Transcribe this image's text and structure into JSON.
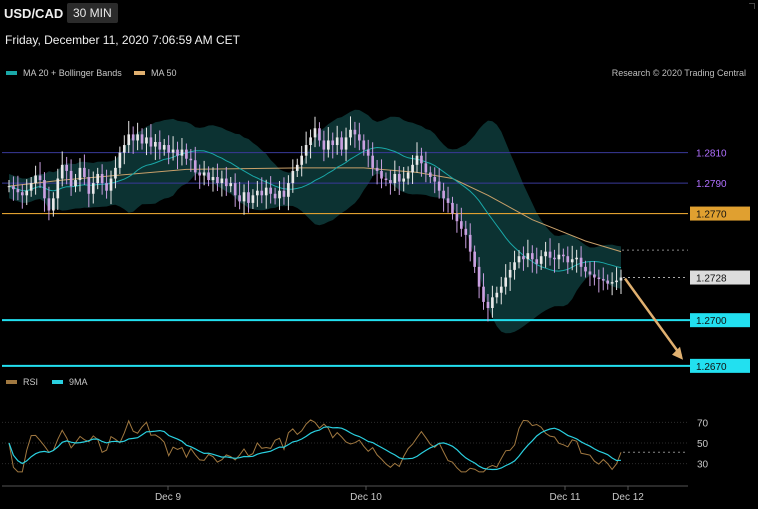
{
  "header": {
    "symbol": "USD/CAD",
    "timeframe": "30 MIN",
    "datetime": "Friday, December 11, 2020 7:06:59 AM CET",
    "credit": "Research © 2020 Trading Central"
  },
  "legend": [
    {
      "label": "MA 20 + Bollinger Bands",
      "color": "#1aa8a8"
    },
    {
      "label": "MA 50",
      "color": "#e0b070"
    }
  ],
  "colors": {
    "up_candle": "#e8e8e8",
    "down_candle": "#c9a0e0",
    "bollinger_band": "#0d3535",
    "ma20": "#1aa8a8",
    "ma50": "#c8a06a",
    "resistance_line": "#3a3a9a",
    "support_line": "#22e0f0",
    "pivot_line": "#e0a030",
    "arrow": "#e0b070",
    "rsi": "#a07840",
    "rsi_ma": "#2ad0e0"
  },
  "chart_data": [
    {
      "type": "candlestick",
      "title": "USD/CAD 30 MIN",
      "x_labels": [
        "Dec 9",
        "Dec 10",
        "Dec 11",
        "Dec 12"
      ],
      "ylim": [
        1.2664,
        1.2838
      ],
      "levels": [
        {
          "value": 1.281,
          "label": "1.2810",
          "style": "resistance"
        },
        {
          "value": 1.279,
          "label": "1.2790",
          "style": "resistance"
        },
        {
          "value": 1.277,
          "label": "1.2770",
          "style": "pivot"
        },
        {
          "value": 1.2728,
          "label": "1.2728",
          "style": "current"
        },
        {
          "value": 1.27,
          "label": "1.2700",
          "style": "support"
        },
        {
          "value": 1.267,
          "label": "1.2670",
          "style": "support"
        }
      ],
      "close_series": [
        1.2788,
        1.2786,
        1.2784,
        1.2782,
        1.2785,
        1.279,
        1.2795,
        1.2792,
        1.278,
        1.2772,
        1.278,
        1.2793,
        1.2802,
        1.2798,
        1.2788,
        1.2792,
        1.28,
        1.2794,
        1.2783,
        1.279,
        1.2796,
        1.279,
        1.2785,
        1.2793,
        1.28,
        1.281,
        1.2815,
        1.2822,
        1.2818,
        1.2822,
        1.2816,
        1.282,
        1.2814,
        1.2817,
        1.2812,
        1.2815,
        1.281,
        1.2812,
        1.2808,
        1.2812,
        1.2806,
        1.2805,
        1.2797,
        1.2795,
        1.2797,
        1.2792,
        1.2794,
        1.279,
        1.2793,
        1.2788,
        1.279,
        1.2782,
        1.2778,
        1.2784,
        1.2777,
        1.2782,
        1.2785,
        1.2782,
        1.2787,
        1.2783,
        1.278,
        1.2785,
        1.2781,
        1.279,
        1.2798,
        1.2802,
        1.2808,
        1.2815,
        1.282,
        1.2826,
        1.2818,
        1.2812,
        1.2818,
        1.2815,
        1.282,
        1.2812,
        1.282,
        1.2825,
        1.2822,
        1.2818,
        1.2812,
        1.2808,
        1.28,
        1.2798,
        1.2793,
        1.2792,
        1.279,
        1.2796,
        1.2791,
        1.2793,
        1.2797,
        1.2802,
        1.2808,
        1.2803,
        1.2797,
        1.2794,
        1.2791,
        1.2785,
        1.278,
        1.2777,
        1.277,
        1.2765,
        1.276,
        1.2756,
        1.2745,
        1.2735,
        1.2722,
        1.2712,
        1.2708,
        1.2715,
        1.2718,
        1.2722,
        1.2728,
        1.2733,
        1.2738,
        1.2742,
        1.274,
        1.2744,
        1.274,
        1.2737,
        1.2742,
        1.2745,
        1.2741,
        1.274,
        1.2743,
        1.2742,
        1.2738,
        1.274,
        1.2741,
        1.2735,
        1.2732,
        1.273,
        1.2728,
        1.2727,
        1.2726,
        1.2724,
        1.2725,
        1.2726,
        1.2728
      ],
      "ma50_anchors": [
        [
          0,
          1.2788
        ],
        [
          12,
          1.2792
        ],
        [
          40,
          1.2799
        ],
        [
          66,
          1.28
        ],
        [
          80,
          1.28
        ],
        [
          92,
          1.2797
        ],
        [
          100,
          1.2793
        ],
        [
          108,
          1.2782
        ],
        [
          118,
          1.2766
        ],
        [
          130,
          1.2752
        ],
        [
          138,
          1.2745
        ]
      ],
      "series": [
        {
          "name": "MA 20 + Bollinger Bands",
          "color": "#1aa8a8"
        },
        {
          "name": "MA 50",
          "color": "#c8a06a"
        }
      ]
    },
    {
      "type": "line",
      "title": "RSI",
      "yticks": [
        30,
        50,
        70
      ],
      "ylim": [
        20,
        80
      ],
      "last_value": 41,
      "series": [
        {
          "name": "RSI",
          "color": "#a07840"
        },
        {
          "name": "9MA",
          "color": "#2ad0e0"
        }
      ]
    }
  ]
}
